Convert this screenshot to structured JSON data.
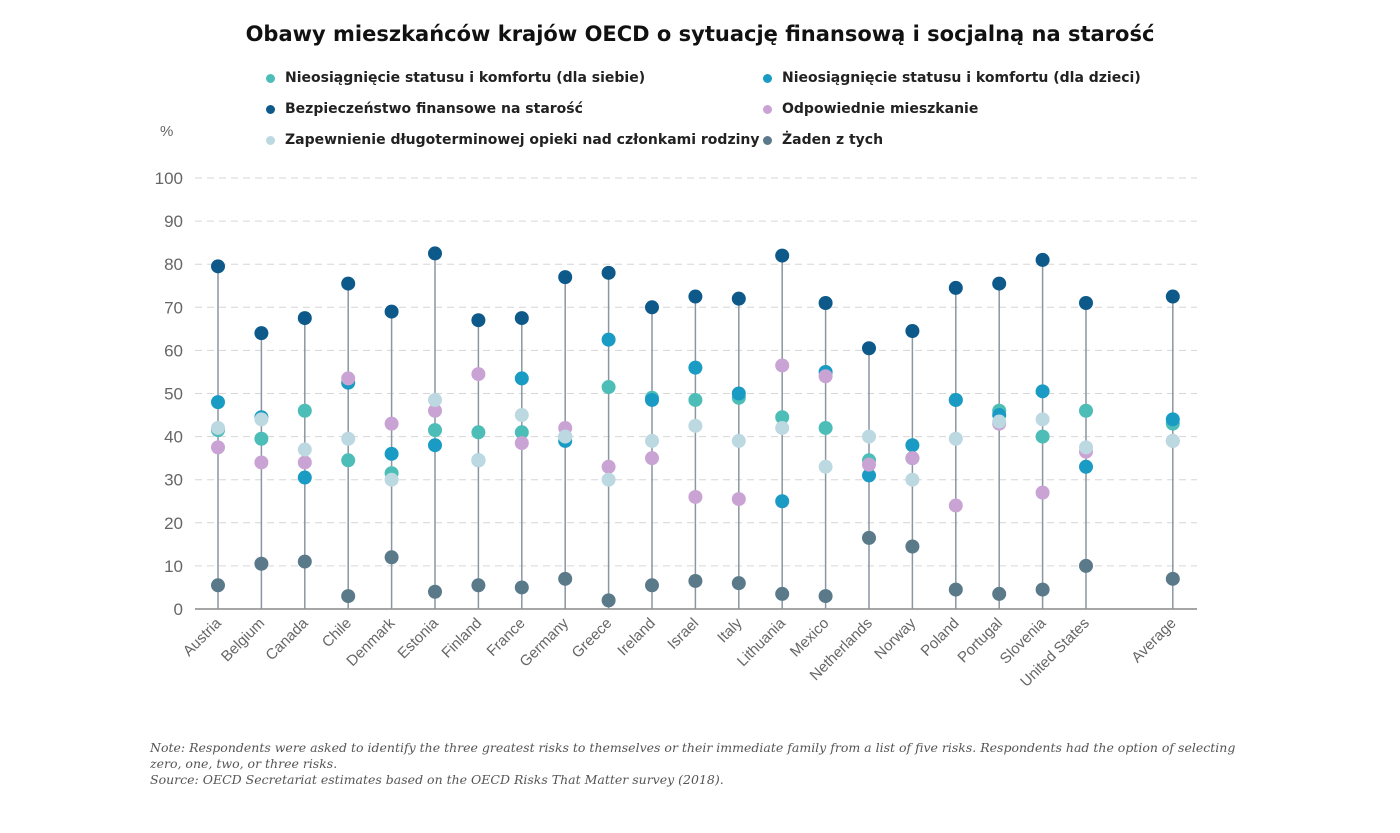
{
  "chart_data": {
    "type": "scatter",
    "title": "Obawy mieszkańców krajów OECD o sytuację finansową i socjalną na starość",
    "ylabel": "%",
    "ylim": [
      0,
      100
    ],
    "yticks": [
      "0",
      "10",
      "20",
      "30",
      "40",
      "50",
      "60",
      "70",
      "80",
      "90",
      "100"
    ],
    "grid": true,
    "legend_position": "top",
    "categories": [
      "Austria",
      "Belgium",
      "Canada",
      "Chile",
      "Denmark",
      "Estonia",
      "Finland",
      "France",
      "Germany",
      "Greece",
      "Ireland",
      "Israel",
      "Italy",
      "Lithuania",
      "Mexico",
      "Netherlands",
      "Norway",
      "Poland",
      "Portugal",
      "Slovenia",
      "United States",
      "Average"
    ],
    "series": [
      {
        "name": "Nieosiągnięcie statusu i komfortu (dla siebie)",
        "color": "#4dbdb8",
        "values": [
          41.5,
          39.5,
          46,
          34.5,
          31.5,
          41.5,
          41,
          41,
          40,
          51.5,
          49,
          48.5,
          49,
          44.5,
          42,
          34.5,
          35,
          48.5,
          46,
          40,
          46,
          43
        ]
      },
      {
        "name": "Nieosiągnięcie statusu i komfortu (dla dzieci)",
        "color": "#1a9bc4",
        "values": [
          48,
          44.5,
          30.5,
          52.5,
          36,
          38,
          34.5,
          53.5,
          39,
          62.5,
          48.5,
          56,
          50,
          25,
          55,
          31,
          38,
          48.5,
          45,
          50.5,
          33,
          44
        ]
      },
      {
        "name": "Bezpieczeństwo finansowe na starość",
        "color": "#0d5a8a",
        "values": [
          79.5,
          64,
          67.5,
          75.5,
          69,
          82.5,
          67,
          67.5,
          77,
          78,
          70,
          72.5,
          72,
          82,
          71,
          60.5,
          64.5,
          74.5,
          75.5,
          81,
          71,
          72.5
        ]
      },
      {
        "name": "Odpowiednie mieszkanie",
        "color": "#c9a3d4",
        "values": [
          37.5,
          34,
          34,
          53.5,
          43,
          46,
          54.5,
          38.5,
          42,
          33,
          35,
          26,
          25.5,
          56.5,
          54,
          33.5,
          35,
          24,
          43,
          27,
          36.5,
          39
        ]
      },
      {
        "name": "Zapewnienie długoterminowej opieki nad członkami rodziny",
        "color": "#bcd8e0",
        "values": [
          42,
          44,
          37,
          39.5,
          30,
          48.5,
          34.5,
          45,
          40,
          30,
          39,
          42.5,
          39,
          42,
          33,
          40,
          30,
          39.5,
          43.5,
          44,
          37.5,
          39
        ]
      },
      {
        "name": "Żaden z tych",
        "color": "#5a7a8a",
        "values": [
          5.5,
          10.5,
          11,
          3,
          12,
          4,
          5.5,
          5,
          7,
          2,
          5.5,
          6.5,
          6,
          3.5,
          3,
          16.5,
          14.5,
          4.5,
          3.5,
          4.5,
          10,
          7
        ]
      }
    ]
  },
  "note": "Note: Respondents were asked to identify the three greatest risks to themselves or their immediate family from a list of five risks. Respondents had the option of selecting zero, one, two, or three risks.",
  "source": "Source: OECD Secretariat estimates based on the OECD Risks That Matter survey (2018)."
}
